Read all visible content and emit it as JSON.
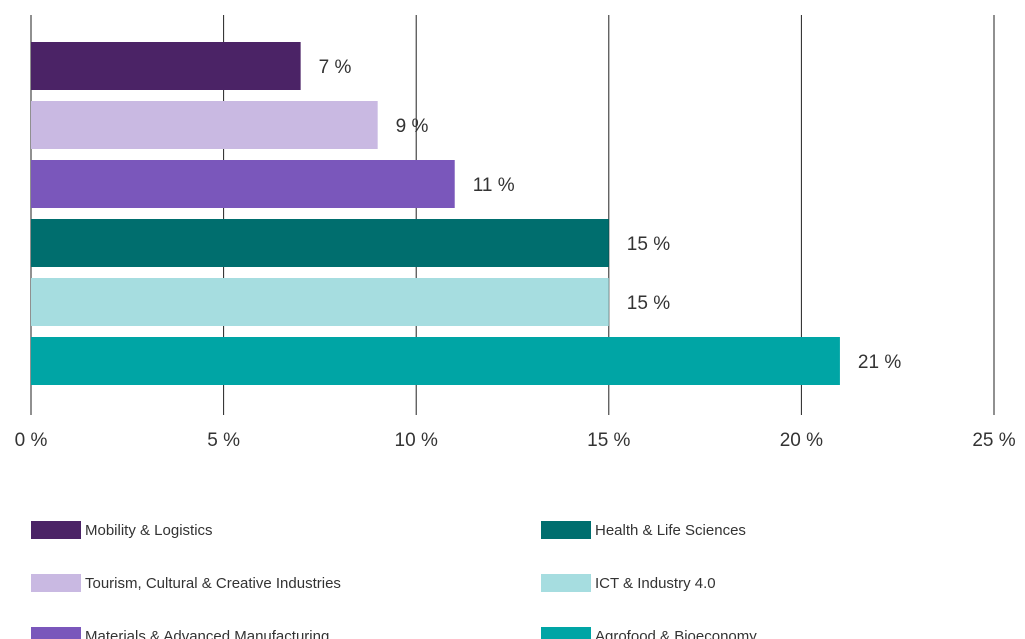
{
  "chart_data": {
    "type": "bar",
    "orientation": "horizontal",
    "categories": [
      "Mobility & Logistics",
      "Tourism, Cultural & Creative Industries",
      "Materials & Advanced Manufacturing",
      "Health & Life Sciences",
      "ICT & Industry 4.0",
      "Agrofood & Bioeconomy"
    ],
    "values": [
      7,
      9,
      11,
      15,
      15,
      21
    ],
    "value_labels": [
      "7 %",
      "9 %",
      "11 %",
      "15 %",
      "15 %",
      "21 %"
    ],
    "colors": [
      "#4b2366",
      "#c9b9e2",
      "#7a57bb",
      "#006e6e",
      "#a6dde0",
      "#00a5a5"
    ],
    "xlim": [
      0,
      25
    ],
    "xticks": [
      {
        "value": 0,
        "label": "0 %"
      },
      {
        "value": 5,
        "label": "5 %"
      },
      {
        "value": 10,
        "label": "10 %"
      },
      {
        "value": 15,
        "label": "15 %"
      },
      {
        "value": 20,
        "label": "20 %"
      },
      {
        "value": 25,
        "label": "25 %"
      }
    ],
    "grid": true
  }
}
